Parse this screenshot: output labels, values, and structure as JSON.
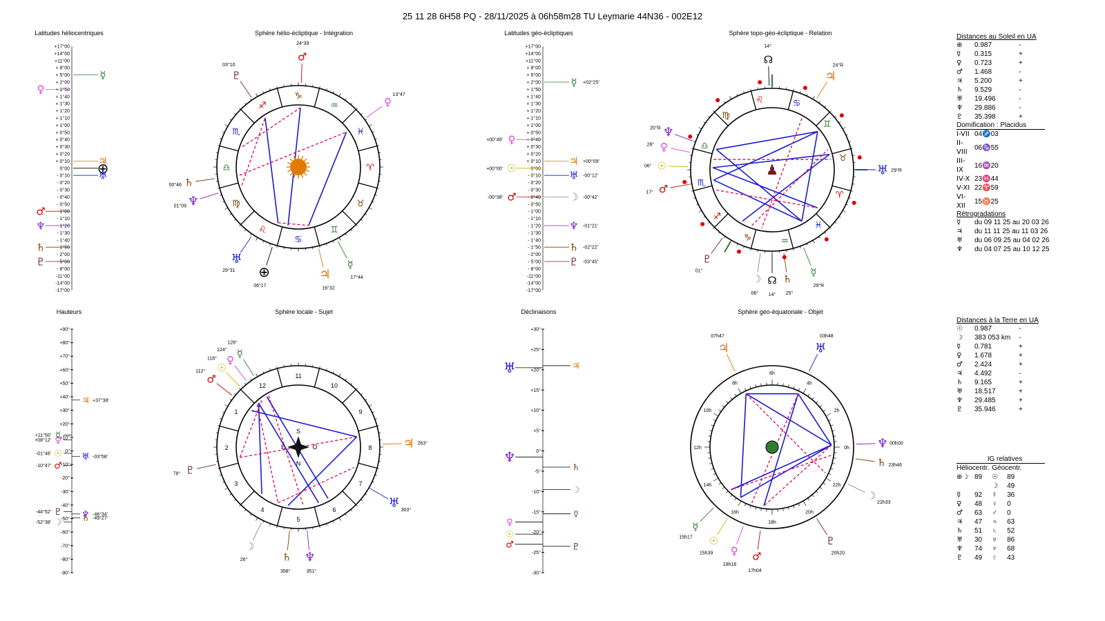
{
  "header": {
    "title": "25 11 28 6H58 PQ   -  28/11/2025 à 06h58m28 TU  Leymarie  44N36 - 002E12"
  },
  "colors": {
    "sun": "#c8b400",
    "moon": "#888888",
    "mercury": "#2e7d32",
    "venus": "#e040e0",
    "mars": "#d00000",
    "jupiter": "#e87000",
    "saturn": "#7b3f00",
    "uranus": "#1a1ad0",
    "neptune": "#7a1fd0",
    "pluto": "#6b2040",
    "aspect_hard": "#e0005a",
    "aspect_soft": "#1a1ad0",
    "earth": "#000000"
  },
  "glyphs": {
    "sun": "☉",
    "moon": "☽",
    "mercury": "☿",
    "venus": "♀",
    "mars": "♂",
    "jupiter": "♃",
    "saturn": "♄",
    "uranus": "♅",
    "neptune": "♆",
    "pluto": "♇",
    "earth": "⊕",
    "node": "☊"
  },
  "sections": {
    "helio_lat": "Latitudes héliocentriques",
    "helio_sphere": "Sphère hélio-écliptique - Intégration",
    "geo_lat": "Latitudes géo-écliptiques",
    "topo_sphere": "Sphère topo-géo-écliptique - Relation",
    "heights": "Hauteurs",
    "local_sphere": "Sphère locale - Sujet",
    "declinations": "Déclinaisons",
    "equat_sphere": "Sphère géo-équatoriale - Objet"
  },
  "lat_scale": [
    "+17°00",
    "+14°00",
    "+11°00",
    "+ 8°00",
    "+ 5°00",
    "+ 2°00",
    "+ 1°50",
    "+ 1°40",
    "+ 1°30",
    "+ 1°20",
    "+ 1°10",
    "+ 1°00",
    "+ 0°50",
    "+ 0°40",
    "+ 0°30",
    "+ 0°20",
    "+ 0°10",
    "0°00",
    "- 0°10",
    "- 0°20",
    "- 0°30",
    "- 0°40",
    "- 0°50",
    "- 1°00",
    "- 1°10",
    "- 1°20",
    "- 1°30",
    "- 1°40",
    "- 1°50",
    "- 2°00",
    "- 5°00",
    "- 8°00",
    "-11°00",
    "-14°00",
    "-17°00"
  ],
  "helio_lat_markers": [
    {
      "p": "mercury",
      "side": "r",
      "idx": 4,
      "val": ""
    },
    {
      "p": "venus",
      "side": "l",
      "idx": 6,
      "val": ""
    },
    {
      "p": "jupiter",
      "side": "r",
      "idx": 16,
      "val": ""
    },
    {
      "p": "earth",
      "side": "r",
      "idx": 17,
      "val": ""
    },
    {
      "p": "uranus",
      "side": "r",
      "idx": 18,
      "val": ""
    },
    {
      "p": "mars",
      "side": "l",
      "idx": 23,
      "val": ""
    },
    {
      "p": "neptune",
      "side": "l",
      "idx": 25,
      "val": ""
    },
    {
      "p": "saturn",
      "side": "l",
      "idx": 28,
      "val": ""
    },
    {
      "p": "pluto",
      "side": "l",
      "idx": 30,
      "val": ""
    }
  ],
  "geo_lat_markers": [
    {
      "p": "mercury",
      "side": "r",
      "idx": 5,
      "val": "+02°25'"
    },
    {
      "p": "venus",
      "side": "l",
      "idx": 13,
      "val": "+00°48'"
    },
    {
      "p": "jupiter",
      "side": "r",
      "idx": 16,
      "val": "+00°09'"
    },
    {
      "p": "sun",
      "side": "l",
      "idx": 17,
      "val": "+00°00'"
    },
    {
      "p": "uranus",
      "side": "r",
      "idx": 18,
      "val": "-00°12'"
    },
    {
      "p": "mars",
      "side": "l",
      "idx": 21,
      "val": "-00°38'"
    },
    {
      "p": "moon",
      "side": "r",
      "idx": 21,
      "val": "-00°42'"
    },
    {
      "p": "neptune",
      "side": "r",
      "idx": 25,
      "val": "-01°21'"
    },
    {
      "p": "saturn",
      "side": "r",
      "idx": 28,
      "val": "-02°22'"
    },
    {
      "p": "pluto",
      "side": "r",
      "idx": 30,
      "val": "-03°45'"
    }
  ],
  "height_scale": [
    "+90°",
    "+80°",
    "+70°",
    "+60°",
    "+50°",
    "+40°",
    "+30°",
    "+20°",
    "+10°",
    "0°",
    "-10°",
    "-20°",
    "-30°",
    "-40°",
    "-50°",
    "-60°",
    "-70°",
    "-80°",
    "-90°"
  ],
  "height_markers": [
    {
      "p": "jupiter",
      "side": "r",
      "deg": 37.6,
      "val": "+37°38'"
    },
    {
      "p": "mercury",
      "side": "l",
      "deg": 11.8,
      "val": "+11°50'"
    },
    {
      "p": "venus",
      "side": "l",
      "deg": 8.2,
      "val": "+08°12'"
    },
    {
      "p": "sun",
      "side": "l",
      "deg": -1.8,
      "val": "-01°46'"
    },
    {
      "p": "uranus",
      "side": "r",
      "deg": -3.97,
      "val": "-03°58'"
    },
    {
      "p": "mars",
      "side": "l",
      "deg": -10.8,
      "val": "-10°47'"
    },
    {
      "p": "neptune",
      "side": "r",
      "deg": -46.6,
      "val": "-46°34'"
    },
    {
      "p": "pluto",
      "side": "l",
      "deg": -44.9,
      "val": "-44°52'"
    },
    {
      "p": "saturn",
      "side": "r",
      "deg": -49.5,
      "val": "-49°27'"
    },
    {
      "p": "moon",
      "side": "l",
      "deg": -52.6,
      "val": "-52°38'"
    }
  ],
  "decl_scale": [
    "+30°",
    "+25°",
    "+20°",
    "+15°",
    "+10°",
    "+5°",
    "0°",
    "-5°",
    "-10°",
    "-15°",
    "-20°",
    "-25°",
    "-30°"
  ],
  "decl_markers": [
    {
      "p": "uranus",
      "side": "l",
      "deg": 20.5
    },
    {
      "p": "jupiter",
      "side": "r",
      "deg": 21
    },
    {
      "p": "neptune",
      "side": "l",
      "deg": -1.5
    },
    {
      "p": "saturn",
      "side": "r",
      "deg": -4
    },
    {
      "p": "moon",
      "side": "r",
      "deg": -9.5
    },
    {
      "p": "mercury",
      "side": "r",
      "deg": -15.5
    },
    {
      "p": "venus",
      "side": "l",
      "deg": -17.5
    },
    {
      "p": "sun",
      "side": "l",
      "deg": -20.5
    },
    {
      "p": "mars",
      "side": "l",
      "deg": -23
    },
    {
      "p": "pluto",
      "side": "r",
      "deg": -23.5
    }
  ],
  "helio_wheel": {
    "zodiac": [
      "♑",
      "♐",
      "♏",
      "♎",
      "♍",
      "♌",
      "♋",
      "♊",
      "♉",
      "♈",
      "♓",
      "♒"
    ],
    "zodiac_colors": [
      "#7b3f00",
      "#d00000",
      "#1a1ad0",
      "#2e7d32",
      "#7b3f00",
      "#d00000",
      "#1a1ad0",
      "#2e7d32",
      "#7b3f00",
      "#d00000",
      "#1a1ad0",
      "#2e7d32"
    ],
    "planets": [
      {
        "p": "pluto",
        "label": "03°10",
        "a": 124
      },
      {
        "p": "mars",
        "label": "24°39",
        "a": 88
      },
      {
        "p": "venus",
        "label": "13°47",
        "a": 36
      },
      {
        "p": "saturn",
        "label": "00°46",
        "a": 188
      },
      {
        "p": "neptune",
        "label": "01°09",
        "a": 198
      },
      {
        "p": "uranus",
        "label": "29°31",
        "a": 236
      },
      {
        "p": "earth",
        "label": "06°17",
        "a": 252
      },
      {
        "p": "mercury",
        "label": "17°44",
        "a": 298
      },
      {
        "p": "jupiter",
        "label": "16°32",
        "a": 284
      }
    ]
  },
  "topo_wheel": {
    "planets": [
      {
        "p": "node",
        "label": "14°",
        "a": 92
      },
      {
        "p": "jupiter",
        "label": "24°R",
        "a": 58
      },
      {
        "p": "neptune",
        "label": "20°R",
        "a": 160
      },
      {
        "p": "venus",
        "label": "28°",
        "a": 168
      },
      {
        "p": "sun",
        "label": "06°",
        "a": 178
      },
      {
        "p": "mars",
        "label": "17°",
        "a": 190
      },
      {
        "p": "uranus",
        "label": "29°R",
        "a": 0
      },
      {
        "p": "pluto",
        "label": "01°",
        "a": 234
      },
      {
        "p": "moon",
        "label": "06°",
        "a": 262
      },
      {
        "p": "node",
        "label": "14°",
        "a": 270
      },
      {
        "p": "saturn",
        "label": "25°",
        "a": 278
      },
      {
        "p": "mercury",
        "label": "29°R",
        "a": 292
      }
    ]
  },
  "local_wheel": {
    "houses": [
      "10",
      "9",
      "8",
      "7",
      "6",
      "5",
      "4",
      "3",
      "2",
      "1",
      "12",
      "11"
    ],
    "compass": {
      "s": "S",
      "n": "N",
      "e": "E",
      "w": "O"
    },
    "planets": [
      {
        "p": "mercury",
        "label": "126°",
        "a": 122
      },
      {
        "p": "venus",
        "label": "124°",
        "a": 128
      },
      {
        "p": "sun",
        "label": "118°",
        "a": 134
      },
      {
        "p": "mars",
        "label": "112°",
        "a": 142
      },
      {
        "p": "jupiter",
        "label": "263°",
        "a": 2
      },
      {
        "p": "pluto",
        "label": "78°",
        "a": 192
      },
      {
        "p": "uranus",
        "label": "303°",
        "a": 330
      },
      {
        "p": "moon",
        "label": "26°",
        "a": 244
      },
      {
        "p": "saturn",
        "label": "358°",
        "a": 264
      },
      {
        "p": "neptune",
        "label": "351°",
        "a": 276
      }
    ]
  },
  "equat_wheel": {
    "hours": [
      "0h",
      "2h",
      "4h",
      "6h",
      "8h",
      "10h",
      "12h",
      "14h",
      "16h",
      "18h",
      "20h",
      "22h"
    ],
    "planets": [
      {
        "p": "jupiter",
        "label": "07h47",
        "a": 116
      },
      {
        "p": "uranus",
        "label": "03h48",
        "a": 64
      },
      {
        "p": "neptune",
        "label": "00h00",
        "a": 2
      },
      {
        "p": "saturn",
        "label": "23h46",
        "a": 352
      },
      {
        "p": "moon",
        "label": "22h33",
        "a": 334
      },
      {
        "p": "pluto",
        "label": "20h20",
        "a": 302
      },
      {
        "p": "mars",
        "label": "17h04",
        "a": 262
      },
      {
        "p": "sun",
        "label": "15h39",
        "a": 238
      },
      {
        "p": "mercury",
        "label": "15h17",
        "a": 226
      },
      {
        "p": "venus",
        "label": "18h18",
        "a": 250
      }
    ]
  },
  "sun_dist": {
    "header": "Distances au Soleil en UA",
    "rows": [
      {
        "g": "⊕",
        "v": "0.987",
        "s": "-"
      },
      {
        "g": "☿",
        "v": "0.315",
        "s": "+"
      },
      {
        "g": "♀",
        "v": "0.723",
        "s": "+"
      },
      {
        "g": "♂",
        "v": "1.468",
        "s": "-"
      },
      {
        "g": "♃",
        "v": "5.200",
        "s": "+"
      },
      {
        "g": "♄",
        "v": "9.529",
        "s": "-"
      },
      {
        "g": "♅",
        "v": "19.496",
        "s": "-"
      },
      {
        "g": "♆",
        "v": "29.886",
        "s": "-"
      },
      {
        "g": "♇",
        "v": "35.398",
        "s": "+"
      }
    ]
  },
  "domification": {
    "header": "Domification : Placidus",
    "rows": [
      {
        "h": "I-VII",
        "v": "04♐03"
      },
      {
        "h": "II-VIII",
        "v": "06♑55"
      },
      {
        "h": "III-IX",
        "v": "16♒20"
      },
      {
        "h": "IV-X",
        "v": "23♓44"
      },
      {
        "h": "V-XI",
        "v": "22♈59"
      },
      {
        "h": "VI-XII",
        "v": "15♉25"
      }
    ]
  },
  "retro": {
    "header": "Rétrogradations",
    "rows": [
      {
        "g": "☿",
        "t": "du 09 11 25 au 20 03 26"
      },
      {
        "g": "♃",
        "t": "du 11 11 25 au 11 03 26"
      },
      {
        "g": "♅",
        "t": "du 06 09 25 au 04 02 26"
      },
      {
        "g": "♆",
        "t": "du 04 07 25 au 10 12 25"
      }
    ]
  },
  "earth_dist": {
    "header": "Distances à la Terre en UA",
    "rows": [
      {
        "g": "☉",
        "v": "0.987",
        "s": "-"
      },
      {
        "g": "☽",
        "v": "383 053 km",
        "s": "-"
      },
      {
        "g": "☿",
        "v": "0.781",
        "s": "+"
      },
      {
        "g": "♀",
        "v": "1.678",
        "s": "+"
      },
      {
        "g": "♂",
        "v": "2.424",
        "s": "+"
      },
      {
        "g": "♃",
        "v": "4.492",
        "s": "-"
      },
      {
        "g": "♄",
        "v": "9.165",
        "s": "+"
      },
      {
        "g": "♅",
        "v": "18.517",
        "s": "+"
      },
      {
        "g": "♆",
        "v": "29.485",
        "s": "+"
      },
      {
        "g": "♇",
        "v": "35.946",
        "s": "+"
      }
    ]
  },
  "ig": {
    "header": "IG relatives",
    "col1": "Héliocentr.",
    "col2": "Géocentr.",
    "rows": [
      {
        "g1": "⊕☽",
        "v1": "89",
        "g2": "☉",
        "v2": "89"
      },
      {
        "g1": "",
        "v1": "",
        "g2": "☽",
        "v2": "49"
      },
      {
        "g1": "☿",
        "v1": "92",
        "g2": "☿",
        "v2": "36"
      },
      {
        "g1": "♀",
        "v1": "48",
        "g2": "♀",
        "v2": "0"
      },
      {
        "g1": "♂",
        "v1": "63",
        "g2": "♂",
        "v2": "0"
      },
      {
        "g1": "♃",
        "v1": "47",
        "g2": "♃",
        "v2": "63"
      },
      {
        "g1": "♄",
        "v1": "51",
        "g2": "♄",
        "v2": "52"
      },
      {
        "g1": "♅",
        "v1": "30",
        "g2": "♅",
        "v2": "86"
      },
      {
        "g1": "♆",
        "v1": "74",
        "g2": "♆",
        "v2": "68"
      },
      {
        "g1": "♇",
        "v1": "49",
        "g2": "♇",
        "v2": "43"
      }
    ]
  }
}
